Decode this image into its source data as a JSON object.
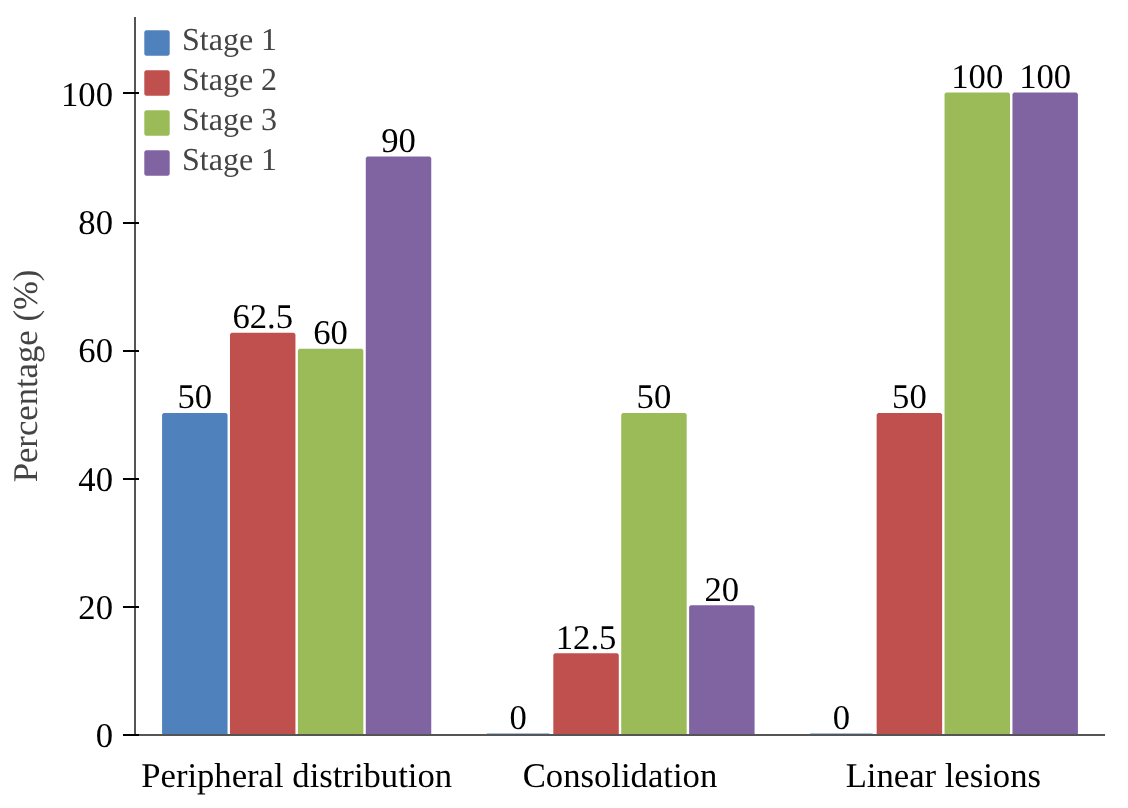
{
  "chart_data": {
    "type": "bar",
    "ylabel": "Percentage (%)",
    "categories": [
      "Peripheral distribution",
      "Consolidation",
      "Linear lesions"
    ],
    "series": [
      {
        "name": "Stage 1",
        "color": "#4f81bd",
        "values": [
          50,
          0,
          0
        ]
      },
      {
        "name": "Stage 2",
        "color": "#c0504d",
        "values": [
          62.5,
          12.5,
          50
        ]
      },
      {
        "name": "Stage 3",
        "color": "#9bbb59",
        "values": [
          60,
          50,
          100
        ]
      },
      {
        "name": "Stage 1",
        "color": "#8064a2",
        "values": [
          90,
          20,
          100
        ]
      }
    ],
    "ylim": [
      0,
      112
    ],
    "yticks": [
      0,
      20,
      40,
      60,
      80,
      100
    ],
    "data_labels": true,
    "grid": false,
    "legend": "top left"
  }
}
